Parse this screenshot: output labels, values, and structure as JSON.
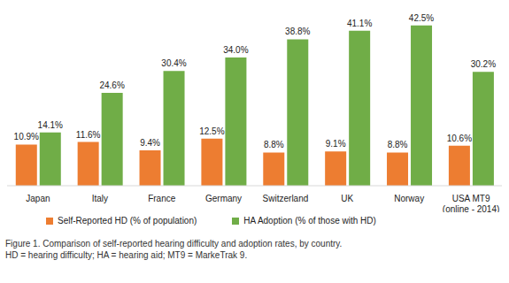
{
  "chart_data": {
    "type": "bar",
    "categories": [
      "Japan",
      "Italy",
      "France",
      "Germany",
      "Switzerland",
      "UK",
      "Norway",
      "USA MT9 (online - 2014)"
    ],
    "series": [
      {
        "name": "Self-Reported HD (% of population)",
        "color": "#ed7d31",
        "values": [
          10.9,
          11.6,
          9.4,
          12.5,
          8.8,
          9.1,
          8.8,
          10.6
        ],
        "value_labels": [
          "10.9%",
          "11.6%",
          "9.4%",
          "12.5%",
          "8.8%",
          "9.1%",
          "8.8%",
          "10.6%"
        ]
      },
      {
        "name": "HA Adoption (% of those with HD)",
        "color": "#70ad47",
        "values": [
          14.1,
          24.6,
          30.4,
          34.0,
          38.8,
          41.1,
          42.5,
          30.2
        ],
        "value_labels": [
          "14.1%",
          "24.6%",
          "30.4%",
          "34.0%",
          "38.8%",
          "41.1%",
          "42.5%",
          "30.2%"
        ]
      }
    ],
    "ylim": [
      0,
      45
    ],
    "grid": false,
    "data_labels": true,
    "tick_labels": "x",
    "legend": "bottom",
    "caption": [
      "Figure 1. Comparison of self-reported hearing difficulty and adoption rates, by country.",
      "HD = hearing difficulty; HA = hearing aid; MT9 = MarkeTrak 9."
    ]
  }
}
